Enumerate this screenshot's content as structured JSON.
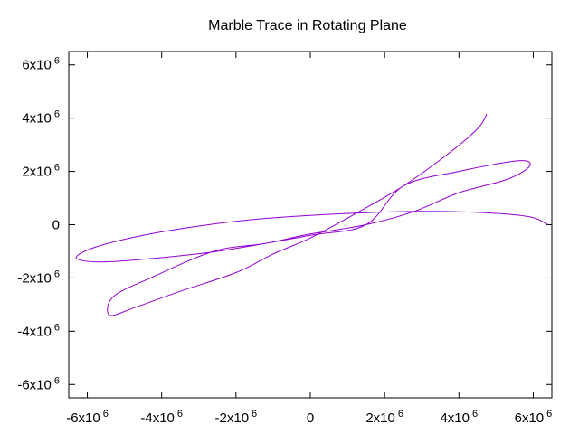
{
  "chart_data": {
    "type": "line",
    "title": "Marble Trace in Rotating Plane",
    "xlabel": "",
    "ylabel": "",
    "xlim": [
      -6500000,
      6500000
    ],
    "ylim": [
      -6500000,
      6500000
    ],
    "grid": false,
    "legend": "none",
    "x_ticks": [
      {
        "value": -6000000,
        "mantissa": "-6x10",
        "exp": "6"
      },
      {
        "value": -4000000,
        "mantissa": "-4x10",
        "exp": "6"
      },
      {
        "value": -2000000,
        "mantissa": "-2x10",
        "exp": "6"
      },
      {
        "value": 0,
        "mantissa": "0",
        "exp": ""
      },
      {
        "value": 2000000,
        "mantissa": "2x10",
        "exp": "6"
      },
      {
        "value": 4000000,
        "mantissa": "4x10",
        "exp": "6"
      },
      {
        "value": 6000000,
        "mantissa": "6x10",
        "exp": "6"
      }
    ],
    "y_ticks": [
      {
        "value": 6000000,
        "mantissa": "6x10",
        "exp": "6"
      },
      {
        "value": 4000000,
        "mantissa": "4x10",
        "exp": "6"
      },
      {
        "value": 2000000,
        "mantissa": "2x10",
        "exp": "6"
      },
      {
        "value": 0,
        "mantissa": "0",
        "exp": ""
      },
      {
        "value": -2000000,
        "mantissa": "-2x10",
        "exp": "6"
      },
      {
        "value": -4000000,
        "mantissa": "-4x10",
        "exp": "6"
      },
      {
        "value": -6000000,
        "mantissa": "-6x10",
        "exp": "6"
      }
    ],
    "series": [
      {
        "color": "#9400d3",
        "points": [
          [
            6400000,
            0
          ],
          [
            5900000,
            300000
          ],
          [
            4700000,
            450000
          ],
          [
            3000000,
            500000
          ],
          [
            1500000,
            450000
          ],
          [
            0,
            350000
          ],
          [
            -1500000,
            200000
          ],
          [
            -3000000,
            -50000
          ],
          [
            -4500000,
            -400000
          ],
          [
            -5800000,
            -850000
          ],
          [
            -6300000,
            -1250000
          ],
          [
            -5700000,
            -1400000
          ],
          [
            -4500000,
            -1300000
          ],
          [
            -2500000,
            -1000000
          ],
          [
            0,
            -400000
          ],
          [
            1500000,
            0
          ],
          [
            2500000,
            1450000
          ],
          [
            4000000,
            2000000
          ],
          [
            5600000,
            2400000
          ],
          [
            5900000,
            2200000
          ],
          [
            5300000,
            1700000
          ],
          [
            4000000,
            1200000
          ],
          [
            2800000,
            500000
          ],
          [
            1500000,
            0
          ],
          [
            0,
            -350000
          ],
          [
            -1200000,
            -700000
          ],
          [
            -2600000,
            -1000000
          ],
          [
            -4300000,
            -2000000
          ],
          [
            -5300000,
            -2700000
          ],
          [
            -5400000,
            -3400000
          ],
          [
            -4700000,
            -3100000
          ],
          [
            -3500000,
            -2500000
          ],
          [
            -2000000,
            -1800000
          ],
          [
            -1000000,
            -1100000
          ],
          [
            0,
            -500000
          ],
          [
            1200000,
            400000
          ],
          [
            2500000,
            1450000
          ],
          [
            3700000,
            2650000
          ],
          [
            4500000,
            3600000
          ],
          [
            4750000,
            4150000
          ]
        ]
      }
    ]
  }
}
